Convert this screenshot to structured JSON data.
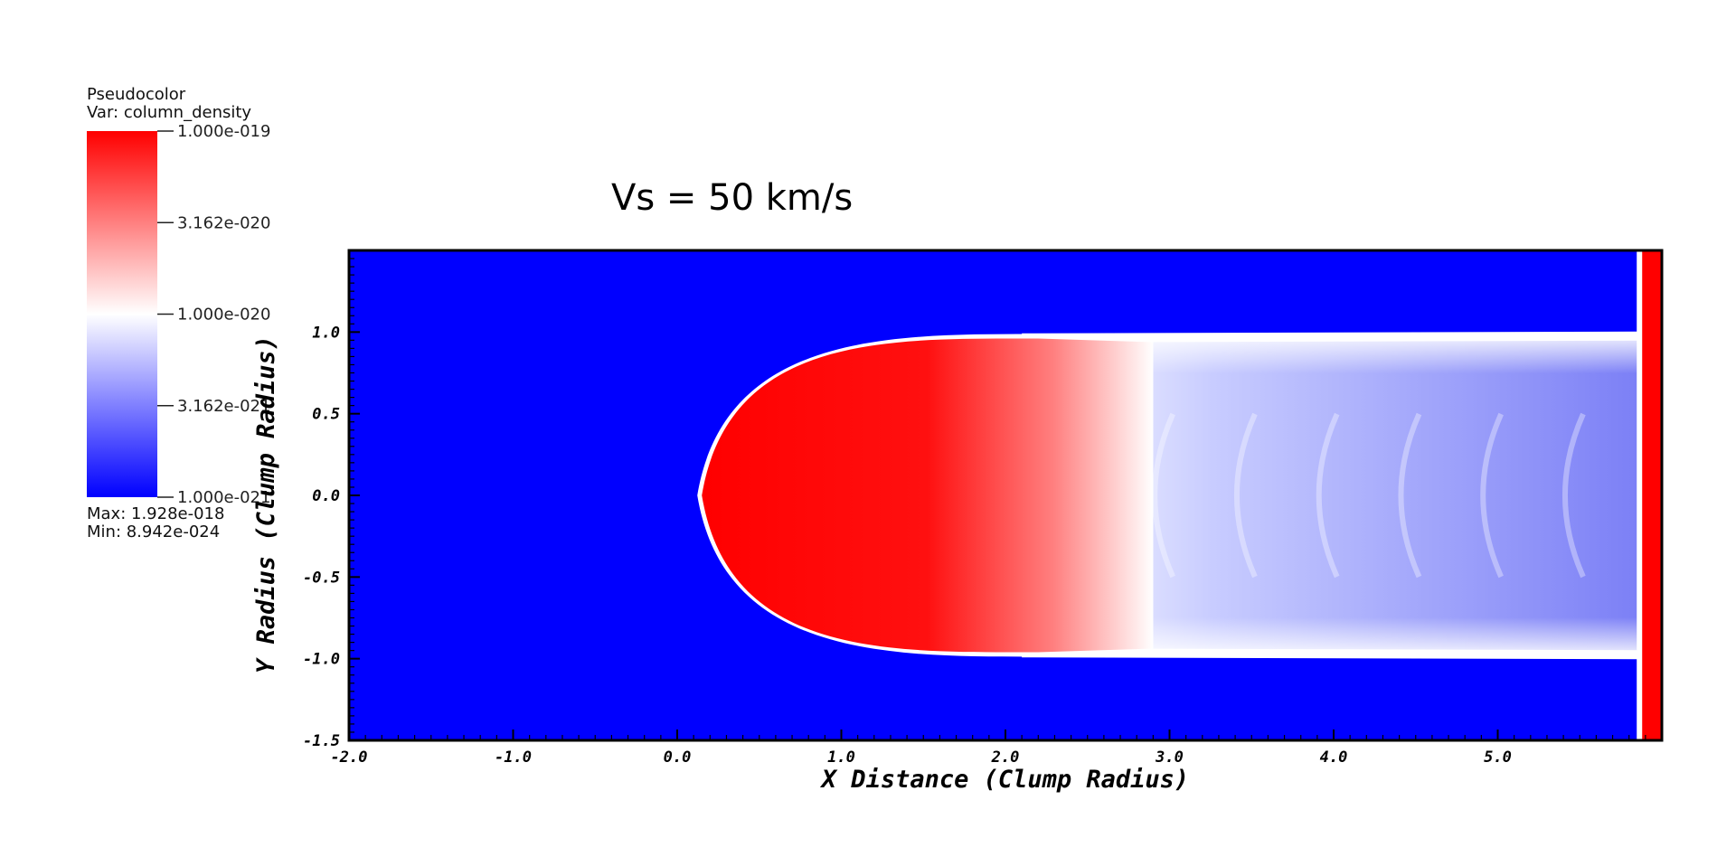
{
  "legend": {
    "plot_type": "Pseudocolor",
    "var_label": "Var: column_density",
    "max_label": "Max:  1.928e-018",
    "min_label": "Min:  8.942e-024",
    "ticks": [
      "1.000e-019",
      "3.162e-020",
      "1.000e-020",
      "3.162e-021",
      "1.000e-021"
    ],
    "colors": {
      "high": "#ff0000",
      "mid": "#ffffff",
      "low": "#0000ff"
    }
  },
  "chart_data": {
    "type": "heatmap",
    "title": "Vs = 50 km/s",
    "xlabel": "X Distance (Clump Radius)",
    "ylabel": "Y Radius (Clump Radius)",
    "xlim": [
      -2.0,
      6.0
    ],
    "ylim": [
      -1.5,
      1.5
    ],
    "x_ticks": [
      -2.0,
      -1.0,
      0.0,
      1.0,
      2.0,
      3.0,
      4.0,
      5.0
    ],
    "x_tick_labels": [
      "-2.0",
      "-1.0",
      "0.0",
      "1.0",
      "2.0",
      "3.0",
      "4.0",
      "5.0"
    ],
    "y_ticks": [
      -1.5,
      -1.0,
      -0.5,
      0.0,
      0.5,
      1.0
    ],
    "y_tick_labels": [
      "-1.5",
      "-1.0",
      "-0.5",
      "0.0",
      "0.5",
      "1.0"
    ],
    "colorbar": {
      "scale": "log",
      "min": 1e-21,
      "max": 1e-19
    },
    "features": {
      "bow_apex_x": 0.15,
      "dense_head_end_x": 2.4,
      "tail_end_x": 5.85,
      "tail_half_width": 0.97,
      "boundary_wall_x": 5.88
    }
  }
}
